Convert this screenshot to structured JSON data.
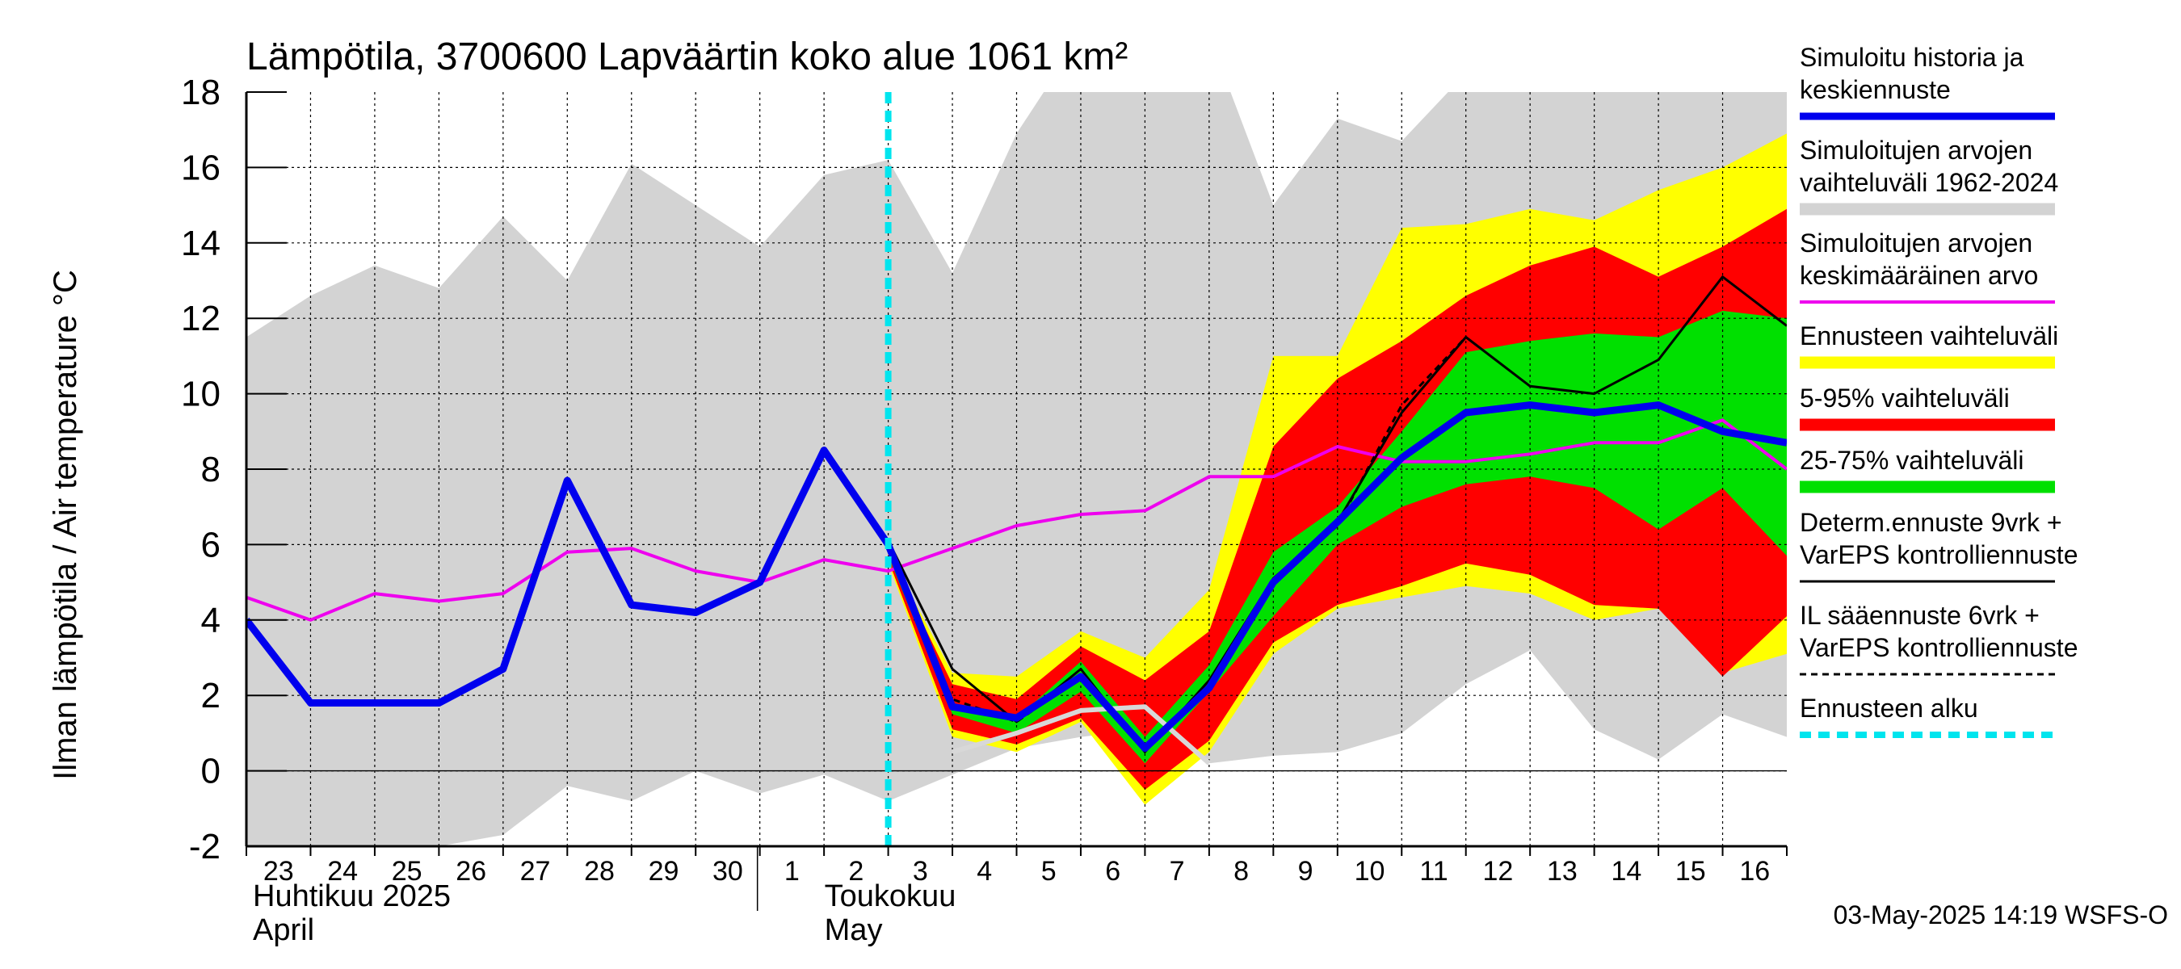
{
  "chart_data": {
    "type": "line",
    "title": "Lämpötila, 3700600 Lapväärtin koko alue 1061 km²",
    "ylabel": "Ilman lämpötila / Air temperature   °C",
    "ylim": [
      -2,
      18
    ],
    "yticks": [
      "-2",
      "0",
      "2",
      "4",
      "6",
      "8",
      "10",
      "12",
      "14",
      "16",
      "18"
    ],
    "x_start_day": "2025-04-23",
    "x_days": 24.0,
    "x_tick_labels": [
      "23",
      "24",
      "25",
      "26",
      "27",
      "28",
      "29",
      "30",
      "1",
      "2",
      "3",
      "4",
      "5",
      "6",
      "7",
      "8",
      "9",
      "10",
      "11",
      "12",
      "13",
      "14",
      "15",
      "16"
    ],
    "month_labels": [
      {
        "fi": "Huhtikuu  2025",
        "en": "April"
      },
      {
        "fi": "Toukokuu",
        "en": "May"
      }
    ],
    "month_start_day_index": [
      0,
      8
    ],
    "forecast_start_day": 10.0,
    "footer": "03-May-2025 14:19 WSFS-O",
    "series": {
      "historical_range": {
        "name": "Simuloitujen arvojen vaihteluväli 1962-2024",
        "color": "#d3d3d3",
        "x": [
          0,
          1,
          2,
          3,
          4,
          5,
          6,
          7,
          8,
          9,
          10,
          11,
          12,
          13,
          14,
          15,
          16,
          17,
          18,
          19,
          20,
          21,
          22,
          23,
          24
        ],
        "upper": [
          11.5,
          12.6,
          13.4,
          12.8,
          14.7,
          13.0,
          16.1,
          15.0,
          13.9,
          15.8,
          16.2,
          13.2,
          16.9,
          19.5,
          19.5,
          19.5,
          15.0,
          17.3,
          16.7,
          18.5,
          18.5,
          18.5,
          18.5,
          18.5,
          18.5
        ],
        "lower": [
          -2.0,
          -2.0,
          -2.0,
          -2.0,
          -1.7,
          -0.4,
          -0.8,
          0.0,
          -0.6,
          -0.1,
          -0.8,
          -0.1,
          0.6,
          0.9,
          1.1,
          0.2,
          0.4,
          0.5,
          1.0,
          2.3,
          3.2,
          1.1,
          0.3,
          1.5,
          0.9
        ]
      },
      "forecast_range": {
        "name": "Ennusteen vaihteluväli",
        "color": "#ffff00",
        "x": [
          10,
          11,
          12,
          13,
          14,
          15,
          16,
          17,
          18,
          19,
          20,
          21,
          22,
          23,
          24
        ],
        "upper": [
          5.8,
          2.6,
          2.5,
          3.7,
          3.0,
          4.8,
          11.0,
          11.0,
          14.4,
          14.5,
          14.9,
          14.6,
          15.4,
          16.0,
          16.9
        ],
        "lower": [
          5.5,
          0.9,
          0.5,
          1.3,
          -0.9,
          0.5,
          3.1,
          4.3,
          4.6,
          4.9,
          4.7,
          4.0,
          4.3,
          2.6,
          3.1
        ]
      },
      "p5_95_range": {
        "name": "5-95% vaihteluväli",
        "color": "#ff0000",
        "x": [
          10,
          11,
          12,
          13,
          14,
          15,
          16,
          17,
          18,
          19,
          20,
          21,
          22,
          23,
          24
        ],
        "upper": [
          5.8,
          2.3,
          1.9,
          3.3,
          2.4,
          3.7,
          8.6,
          10.4,
          11.4,
          12.6,
          13.4,
          13.9,
          13.1,
          13.9,
          14.9
        ],
        "lower": [
          5.6,
          1.1,
          0.7,
          1.4,
          -0.5,
          0.8,
          3.4,
          4.4,
          4.9,
          5.5,
          5.2,
          4.4,
          4.3,
          2.5,
          4.1
        ]
      },
      "p25_75_range": {
        "name": "25-75% vaihteluväli",
        "color": "#00e000",
        "x": [
          10,
          11,
          12,
          13,
          14,
          15,
          16,
          17,
          18,
          19,
          20,
          21,
          22,
          23,
          24
        ],
        "upper": [
          5.7,
          1.8,
          1.4,
          2.9,
          0.9,
          2.8,
          5.8,
          7.0,
          9.0,
          11.1,
          11.4,
          11.6,
          11.5,
          12.2,
          12.0
        ],
        "lower": [
          5.7,
          1.5,
          1.0,
          2.1,
          0.2,
          2.1,
          4.1,
          6.0,
          7.0,
          7.6,
          7.8,
          7.5,
          6.4,
          7.5,
          5.7
        ]
      },
      "simulated_mean": {
        "name": "Simuloitujen arvojen keskimääräinen arvo",
        "color": "#ee00ee",
        "x": [
          0,
          1,
          2,
          3,
          4,
          5,
          6,
          7,
          8,
          9,
          10,
          11,
          12,
          13,
          14,
          15,
          16,
          17,
          18,
          19,
          20,
          21,
          22,
          23,
          24
        ],
        "values": [
          4.6,
          4.0,
          4.7,
          4.5,
          4.7,
          5.8,
          5.9,
          5.3,
          5.0,
          5.6,
          5.3,
          5.9,
          6.5,
          6.8,
          6.9,
          7.8,
          7.8,
          8.6,
          8.2,
          8.2,
          8.4,
          8.7,
          8.7,
          9.3,
          8.0
        ]
      },
      "gray_light": {
        "name": "",
        "color": "#d8d8d8",
        "x": [
          11,
          12,
          13,
          14,
          15
        ],
        "values": [
          0.5,
          1.0,
          1.6,
          1.7,
          0.2
        ]
      },
      "deterministic": {
        "name": "Determ.ennuste 9vrk + VarEPS kontrolliennuste",
        "color": "#000000",
        "x": [
          9,
          10,
          11,
          12,
          13,
          14,
          15,
          16,
          17,
          18,
          19,
          20,
          21,
          22,
          23,
          24
        ],
        "values": [
          8.5,
          6.1,
          2.7,
          1.3,
          2.7,
          0.5,
          2.4,
          5.1,
          6.6,
          9.5,
          11.5,
          10.2,
          10.0,
          10.9,
          13.1,
          11.8
        ]
      },
      "il_weather": {
        "name": "IL sääennuste 6vrk + VarEPS kontrolliennuste",
        "color": "#000000",
        "x": [
          9,
          10,
          11,
          12,
          13,
          14,
          15,
          16,
          17,
          18,
          19
        ],
        "values": [
          8.5,
          5.9,
          1.9,
          1.3,
          2.5,
          0.6,
          2.2,
          5.0,
          6.5,
          9.7,
          11.5
        ]
      },
      "history_median": {
        "name": "Simuloitu historia ja keskiennuste",
        "color": "#0000ee",
        "x": [
          0,
          1,
          2,
          3,
          4,
          5,
          6,
          7,
          8,
          9,
          10,
          11,
          12,
          13,
          14,
          15,
          16,
          17,
          18,
          19,
          20,
          21,
          22,
          23,
          24
        ],
        "values": [
          4.0,
          1.8,
          1.8,
          1.8,
          2.7,
          7.7,
          4.4,
          4.2,
          5.0,
          8.5,
          6.0,
          1.7,
          1.4,
          2.5,
          0.6,
          2.2,
          5.0,
          6.6,
          8.3,
          9.5,
          9.7,
          9.5,
          9.7,
          9.0,
          8.7
        ]
      }
    }
  },
  "legend": [
    {
      "lines": [
        "Simuloitu historia ja",
        "keskiennuste"
      ],
      "color": "#0000ee",
      "style": "solid-thick"
    },
    {
      "lines": [
        "Simuloitujen arvojen",
        "vaihteluväli 1962-2024"
      ],
      "color": "#d3d3d3",
      "style": "band"
    },
    {
      "lines": [
        "Simuloitujen arvojen",
        "keskimääräinen arvo"
      ],
      "color": "#ee00ee",
      "style": "solid"
    },
    {
      "lines": [
        "Ennusteen vaihteluväli"
      ],
      "color": "#ffff00",
      "style": "band"
    },
    {
      "lines": [
        "5-95% vaihteluväli"
      ],
      "color": "#ff0000",
      "style": "band"
    },
    {
      "lines": [
        "25-75% vaihteluväli"
      ],
      "color": "#00e000",
      "style": "band"
    },
    {
      "lines": [
        "Determ.ennuste 9vrk +",
        "VarEPS kontrolliennuste"
      ],
      "color": "#000000",
      "style": "solid-thin"
    },
    {
      "lines": [
        "IL sääennuste 6vrk  +",
        "  VarEPS kontrolliennuste"
      ],
      "color": "#000000",
      "style": "dashed"
    },
    {
      "lines": [
        "Ennusteen alku"
      ],
      "color": "#00e5ee",
      "style": "dashed-thick"
    }
  ]
}
